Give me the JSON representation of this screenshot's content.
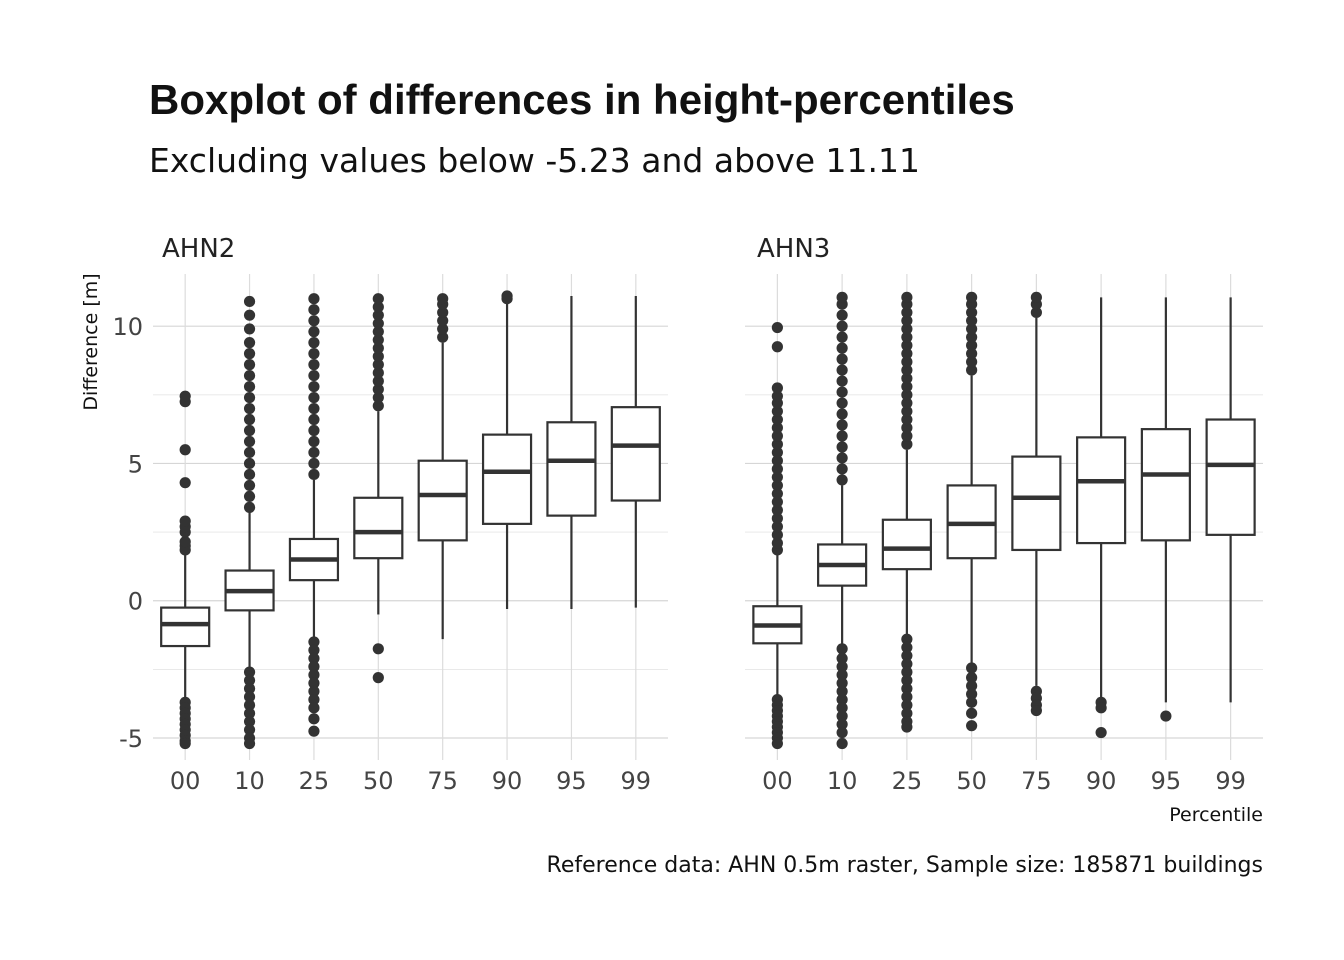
{
  "chart_data": {
    "type": "boxplot",
    "title": "Boxplot of differences in height-percentiles",
    "subtitle": "Excluding values below -5.23 and above 11.11",
    "xlabel": "Percentile",
    "ylabel": "Difference [m]",
    "caption": "Reference data: AHN 0.5m raster, Sample size: 185871 buildings",
    "ylim": [
      -5.8,
      11.9
    ],
    "yticks": [
      -5,
      0,
      5,
      10
    ],
    "grid": true,
    "categories": [
      "00",
      "10",
      "25",
      "50",
      "75",
      "90",
      "95",
      "99"
    ],
    "panels": [
      {
        "name": "AHN2",
        "boxes": [
          {
            "category": "00",
            "lower_whisker": -3.6,
            "q1": -1.65,
            "median": -0.85,
            "q3": -0.25,
            "upper_whisker": 1.75,
            "outliers": [
              -3.7,
              -3.9,
              -4.1,
              -4.3,
              -4.5,
              -4.7,
              -4.9,
              -5.1,
              -5.2,
              1.85,
              2.0,
              2.15,
              2.5,
              2.7,
              2.9,
              4.3,
              5.5,
              7.25,
              7.45
            ]
          },
          {
            "category": "10",
            "lower_whisker": -2.5,
            "q1": -0.35,
            "median": 0.35,
            "q3": 1.1,
            "upper_whisker": 3.25,
            "outliers": [
              -2.6,
              -2.9,
              -3.2,
              -3.5,
              -3.8,
              -4.1,
              -4.4,
              -4.7,
              -5.0,
              -5.2,
              3.4,
              3.8,
              4.2,
              4.6,
              5.0,
              5.4,
              5.8,
              6.2,
              6.6,
              7.0,
              7.4,
              7.8,
              8.2,
              8.6,
              9.0,
              9.4,
              9.9,
              10.4,
              10.9
            ]
          },
          {
            "category": "25",
            "lower_whisker": -1.4,
            "q1": 0.75,
            "median": 1.5,
            "q3": 2.25,
            "upper_whisker": 4.4,
            "outliers": [
              -1.5,
              -1.8,
              -2.1,
              -2.4,
              -2.7,
              -3.0,
              -3.3,
              -3.6,
              -3.9,
              -4.3,
              -4.75,
              4.6,
              5.0,
              5.4,
              5.8,
              6.2,
              6.6,
              7.0,
              7.4,
              7.8,
              8.2,
              8.6,
              9.0,
              9.4,
              9.8,
              10.2,
              10.6,
              11.0
            ]
          },
          {
            "category": "50",
            "lower_whisker": -0.5,
            "q1": 1.55,
            "median": 2.5,
            "q3": 3.75,
            "upper_whisker": 6.9,
            "outliers": [
              -1.75,
              -2.8,
              7.1,
              7.4,
              7.7,
              8.0,
              8.3,
              8.6,
              8.9,
              9.2,
              9.5,
              9.8,
              10.1,
              10.4,
              10.7,
              11.0
            ]
          },
          {
            "category": "75",
            "lower_whisker": -1.4,
            "q1": 2.2,
            "median": 3.85,
            "q3": 5.1,
            "upper_whisker": 9.4,
            "outliers": [
              9.6,
              9.9,
              10.2,
              10.5,
              10.8,
              11.0
            ]
          },
          {
            "category": "90",
            "lower_whisker": -0.3,
            "q1": 2.8,
            "median": 4.7,
            "q3": 6.05,
            "upper_whisker": 10.9,
            "outliers": [
              11.0,
              11.1
            ]
          },
          {
            "category": "95",
            "lower_whisker": -0.3,
            "q1": 3.1,
            "median": 5.1,
            "q3": 6.5,
            "upper_whisker": 11.1,
            "outliers": []
          },
          {
            "category": "99",
            "lower_whisker": -0.25,
            "q1": 3.65,
            "median": 5.65,
            "q3": 7.05,
            "upper_whisker": 11.1,
            "outliers": []
          }
        ]
      },
      {
        "name": "AHN3",
        "boxes": [
          {
            "category": "00",
            "lower_whisker": -3.5,
            "q1": -1.55,
            "median": -0.9,
            "q3": -0.2,
            "upper_whisker": 1.75,
            "outliers": [
              -3.6,
              -3.8,
              -4.0,
              -4.2,
              -4.4,
              -4.6,
              -4.8,
              -5.0,
              -5.2,
              1.85,
              2.1,
              2.4,
              2.7,
              3.0,
              3.3,
              3.6,
              3.9,
              4.2,
              4.5,
              4.8,
              5.1,
              5.4,
              5.7,
              6.0,
              6.3,
              6.6,
              6.9,
              7.2,
              7.45,
              7.75,
              9.25,
              9.95
            ]
          },
          {
            "category": "10",
            "lower_whisker": -1.65,
            "q1": 0.55,
            "median": 1.3,
            "q3": 2.05,
            "upper_whisker": 4.2,
            "outliers": [
              -1.75,
              -2.1,
              -2.4,
              -2.7,
              -3.0,
              -3.3,
              -3.6,
              -3.9,
              -4.2,
              -4.5,
              -4.8,
              -5.2,
              4.4,
              4.8,
              5.2,
              5.6,
              6.0,
              6.4,
              6.8,
              7.2,
              7.6,
              8.0,
              8.4,
              8.8,
              9.2,
              9.6,
              10.0,
              10.4,
              10.8,
              11.05
            ]
          },
          {
            "category": "25",
            "lower_whisker": -1.3,
            "q1": 1.15,
            "median": 1.9,
            "q3": 2.95,
            "upper_whisker": 5.5,
            "outliers": [
              -1.4,
              -1.7,
              -2.0,
              -2.3,
              -2.6,
              -2.9,
              -3.2,
              -3.5,
              -3.8,
              -4.1,
              -4.4,
              -4.6,
              5.7,
              6.0,
              6.3,
              6.6,
              6.9,
              7.2,
              7.5,
              7.8,
              8.1,
              8.4,
              8.7,
              9.0,
              9.3,
              9.6,
              9.9,
              10.2,
              10.5,
              10.8,
              11.05
            ]
          },
          {
            "category": "50",
            "lower_whisker": -2.3,
            "q1": 1.55,
            "median": 2.8,
            "q3": 4.2,
            "upper_whisker": 8.2,
            "outliers": [
              -2.45,
              -2.8,
              -3.1,
              -3.4,
              -3.7,
              -4.1,
              -4.55,
              8.4,
              8.7,
              9.0,
              9.3,
              9.6,
              9.9,
              10.2,
              10.5,
              10.8,
              11.05
            ]
          },
          {
            "category": "75",
            "lower_whisker": -3.1,
            "q1": 1.85,
            "median": 3.75,
            "q3": 5.25,
            "upper_whisker": 10.3,
            "outliers": [
              -3.3,
              -3.55,
              -3.8,
              -4.0,
              10.5,
              10.8,
              11.05
            ]
          },
          {
            "category": "90",
            "lower_whisker": -3.55,
            "q1": 2.1,
            "median": 4.35,
            "q3": 5.95,
            "upper_whisker": 11.05,
            "outliers": [
              -3.7,
              -3.9,
              -4.8
            ]
          },
          {
            "category": "95",
            "lower_whisker": -3.7,
            "q1": 2.2,
            "median": 4.6,
            "q3": 6.25,
            "upper_whisker": 11.05,
            "outliers": [
              -4.2
            ]
          },
          {
            "category": "99",
            "lower_whisker": -3.7,
            "q1": 2.4,
            "median": 4.95,
            "q3": 6.6,
            "upper_whisker": 11.05,
            "outliers": []
          }
        ]
      }
    ]
  }
}
